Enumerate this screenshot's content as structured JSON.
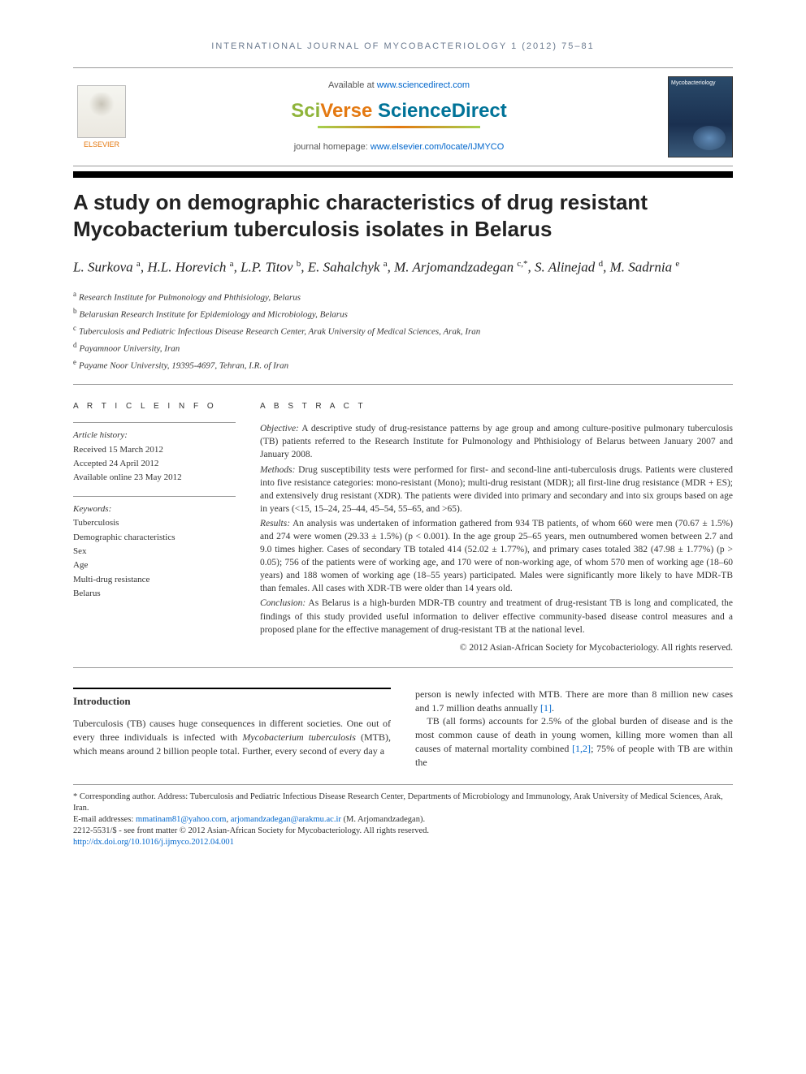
{
  "journal_header": "INTERNATIONAL JOURNAL OF MYCOBACTERIOLOGY 1 (2012) 75–81",
  "branding": {
    "elsevier": "ELSEVIER",
    "available_prefix": "Available at ",
    "available_link": "www.sciencedirect.com",
    "sciverse_sci": "Sci",
    "sciverse_verse": "Verse ",
    "sciverse_direct": "ScienceDirect",
    "homepage_prefix": "journal homepage: ",
    "homepage_link": "www.elsevier.com/locate/IJMYCO",
    "cover_label": "Mycobacteriology"
  },
  "title": "A study on demographic characteristics of drug resistant Mycobacterium tuberculosis isolates in Belarus",
  "authors_html": "L. Surkova <sup>a</sup>, H.L. Horevich <sup>a</sup>, L.P. Titov <sup>b</sup>, E. Sahalchyk <sup>a</sup>, M. Arjomandzadegan <sup>c,*</sup>, S. Alinejad <sup>d</sup>, M. Sadrnia <sup>e</sup>",
  "affiliations": [
    {
      "sup": "a",
      "text": "Research Institute for Pulmonology and Phthisiology, Belarus"
    },
    {
      "sup": "b",
      "text": "Belarusian Research Institute for Epidemiology and Microbiology, Belarus"
    },
    {
      "sup": "c",
      "text": "Tuberculosis and Pediatric Infectious Disease Research Center, Arak University of Medical Sciences, Arak, Iran"
    },
    {
      "sup": "d",
      "text": "Payamnoor University, Iran"
    },
    {
      "sup": "e",
      "text": "Payame Noor University, 19395-4697, Tehran, I.R. of Iran"
    }
  ],
  "info": {
    "heading": "A R T I C L E  I N F O",
    "history_label": "Article history:",
    "received": "Received 15 March 2012",
    "accepted": "Accepted 24 April 2012",
    "online": "Available online 23 May 2012",
    "keywords_label": "Keywords:",
    "keywords": [
      "Tuberculosis",
      "Demographic characteristics",
      "Sex",
      "Age",
      "Multi-drug resistance",
      "Belarus"
    ]
  },
  "abstract": {
    "heading": "A B S T R A C T",
    "objective_label": "Objective:",
    "objective": " A descriptive study of drug-resistance patterns by age group and among culture-positive pulmonary tuberculosis (TB) patients referred to the Research Institute for Pulmonology and Phthisiology of Belarus between January 2007 and January 2008.",
    "methods_label": "Methods:",
    "methods": " Drug susceptibility tests were performed for first- and second-line anti-tuberculosis drugs. Patients were clustered into five resistance categories: mono-resistant (Mono); multi-drug resistant (MDR); all first-line drug resistance (MDR + ES); and extensively drug resistant (XDR). The patients were divided into primary and secondary and into six groups based on age in years (<15, 15–24, 25–44, 45–54, 55–65, and >65).",
    "results_label": "Results:",
    "results": " An analysis was undertaken of information gathered from 934 TB patients, of whom 660 were men (70.67 ± 1.5%) and 274 were women (29.33 ± 1.5%) (p < 0.001). In the age group 25–65 years, men outnumbered women between 2.7 and 9.0 times higher. Cases of secondary TB totaled 414 (52.02 ± 1.77%), and primary cases totaled 382 (47.98 ± 1.77%) (p > 0.05); 756 of the patients were of working age, and 170 were of non-working age, of whom 570 men of working age (18–60 years) and 188 women of working age (18–55 years) participated. Males were significantly more likely to have MDR-TB than females. All cases with XDR-TB were older than 14 years old.",
    "conclusion_label": "Conclusion:",
    "conclusion": " As Belarus is a high-burden MDR-TB country and treatment of drug-resistant TB is long and complicated, the findings of this study provided useful information to deliver effective community-based disease control measures and a proposed plane for the effective management of drug-resistant TB at the national level.",
    "copyright": "© 2012 Asian-African Society for Mycobacteriology. All rights reserved."
  },
  "intro": {
    "heading": "Introduction",
    "p1": "Tuberculosis (TB) causes huge consequences in different societies. One out of every three individuals is infected with Mycobacterium tuberculosis (MTB), which means around 2 billion people total. Further, every second of every day a",
    "p2a": "person is newly infected with MTB. There are more than 8 million new cases and 1.7 million deaths annually ",
    "p2_ref": "[1]",
    "p2b": ".",
    "p3a": "TB (all forms) accounts for 2.5% of the global burden of disease and is the most common cause of death in young women, killing more women than all causes of maternal mortality combined ",
    "p3_ref": "[1,2]",
    "p3b": "; 75% of people with TB are within the"
  },
  "footnotes": {
    "corr": "* Corresponding author. Address: Tuberculosis and Pediatric Infectious Disease Research Center, Departments of Microbiology and Immunology, Arak University of Medical Sciences, Arak, Iran.",
    "emails_label": "E-mail addresses: ",
    "email1": "mmatinam81@yahoo.com",
    "emails_sep": ", ",
    "email2": "arjomandzadegan@arakmu.ac.ir",
    "emails_author": " (M. Arjomandzadegan).",
    "issn": "2212-5531/$ - see front matter © 2012 Asian-African Society for Mycobacteriology. All rights reserved.",
    "doi": "http://dx.doi.org/10.1016/j.ijmyco.2012.04.001"
  },
  "colors": {
    "link": "#0066cc",
    "header_text": "#6b7a8f",
    "orange": "#e47911",
    "green": "#8fb43a",
    "teal": "#007398"
  }
}
